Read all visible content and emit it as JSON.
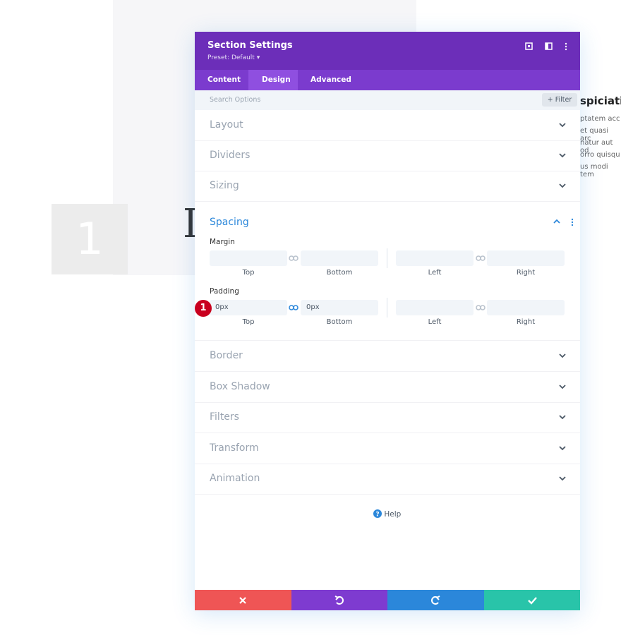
{
  "background": {
    "number": "1",
    "letter": "I",
    "heading": "spiciati",
    "lines": [
      "ptatem acc",
      "et quasi arc",
      "natur aut od",
      "orro quisqu",
      "us modi tem"
    ]
  },
  "modal": {
    "title": "Section Settings",
    "preset": "Preset: Default",
    "tabs": [
      "Content",
      "Design",
      "Advanced"
    ],
    "search": "Search Options",
    "filter": "Filter",
    "groups_before": [
      "Layout",
      "Dividers",
      "Sizing"
    ],
    "spacing": {
      "title": "Spacing",
      "margin": {
        "label": "Margin",
        "field_labels": [
          "Top",
          "Bottom",
          "Left",
          "Right"
        ]
      },
      "padding": {
        "label": "Padding",
        "values": [
          "0px",
          "0px"
        ],
        "field_labels": [
          "Top",
          "Bottom",
          "Left",
          "Right"
        ],
        "badge": "1"
      }
    },
    "groups_after": [
      "Border",
      "Box Shadow",
      "Filters",
      "Transform",
      "Animation"
    ],
    "help": "Help"
  }
}
